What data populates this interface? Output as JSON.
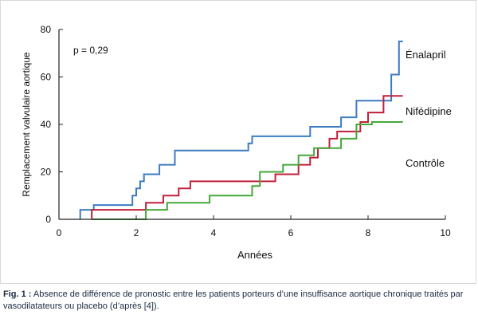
{
  "chart_data": {
    "type": "line",
    "step": true,
    "xlabel": "Années",
    "ylabel": "Remplacement valvulaire aortique",
    "xlim": [
      0,
      10
    ],
    "ylim": [
      0,
      80
    ],
    "xticks": [
      0,
      2,
      4,
      6,
      8,
      10
    ],
    "yticks": [
      0,
      20,
      40,
      60,
      80
    ],
    "grid": false,
    "annotation": "p = 0,29",
    "series": [
      {
        "name": "Énalapril",
        "color": "#3d7cc0",
        "x": [
          0.55,
          0.9,
          1.9,
          2.0,
          2.1,
          2.2,
          2.6,
          3.0,
          4.9,
          5.0,
          6.5,
          7.3,
          7.7,
          8.6,
          8.8,
          8.9
        ],
        "y": [
          4,
          6,
          10,
          13,
          16,
          19,
          23,
          29,
          32,
          35,
          39,
          43,
          50,
          61,
          75,
          75
        ]
      },
      {
        "name": "Nifédipine",
        "color": "#c0203a",
        "x": [
          0.85,
          2.25,
          2.7,
          3.1,
          3.4,
          5.0,
          5.6,
          6.2,
          6.5,
          6.7,
          7.0,
          7.2,
          7.8,
          8.0,
          8.4,
          8.9
        ],
        "y": [
          4,
          7,
          10,
          13,
          16,
          16,
          19,
          23,
          26,
          30,
          34,
          37,
          41,
          45,
          52,
          52
        ]
      },
      {
        "name": "Contrôle",
        "color": "#45a83a",
        "x": [
          0.85,
          2.25,
          2.8,
          3.9,
          5.0,
          5.2,
          5.8,
          6.2,
          6.6,
          7.3,
          7.7,
          8.0,
          8.1,
          8.9
        ],
        "y": [
          0,
          4,
          7,
          10,
          14,
          20,
          23,
          27,
          30,
          34,
          40,
          40,
          41,
          41
        ]
      }
    ]
  },
  "caption": {
    "label": "Fig. 1 :",
    "text": " Absence de différence de pronostic entre les patients porteurs d’une insuffisance aortique chronique traités par vasodilatateurs ou placebo (d’après [4])."
  }
}
